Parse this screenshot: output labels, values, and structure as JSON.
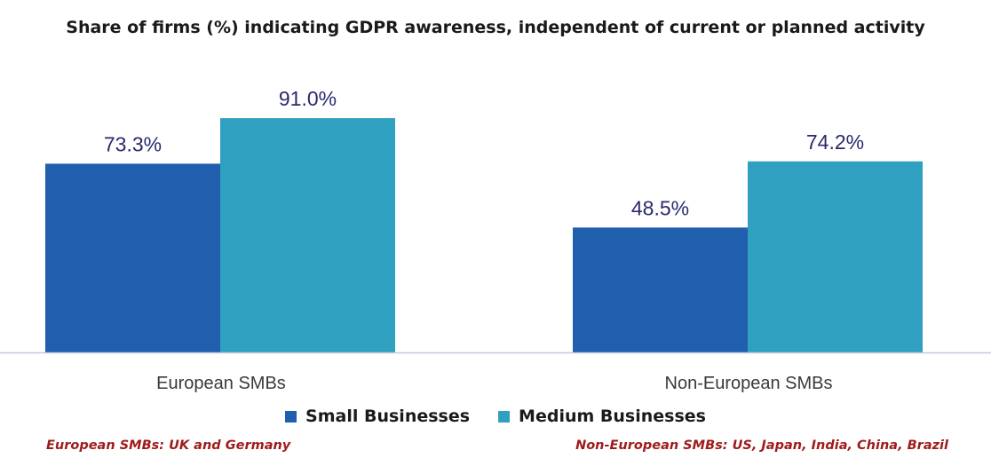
{
  "chart_data": {
    "type": "bar",
    "title": "Share of firms (%)  indicating GDPR awareness, independent of current or planned activity",
    "categories": [
      "European SMBs",
      "Non-European SMBs"
    ],
    "series": [
      {
        "name": "Small Businesses",
        "values": [
          73.3,
          48.5
        ],
        "labels": [
          "73.3%",
          "48.5%"
        ],
        "color": "#1f5fad"
      },
      {
        "name": "Medium Businesses",
        "values": [
          91.0,
          74.2
        ],
        "labels": [
          "91.0%",
          "74.2%"
        ],
        "color": "#2fa0c0"
      }
    ],
    "ylim": [
      0,
      100
    ],
    "grid": false,
    "legend_position": "bottom",
    "axis_color": "#c8c8e0",
    "label_color": "#2a2a6e"
  },
  "footnotes": {
    "left": "European SMBs: UK and Germany",
    "right": "Non-European SMBs: US, Japan, India, China, Brazil"
  }
}
